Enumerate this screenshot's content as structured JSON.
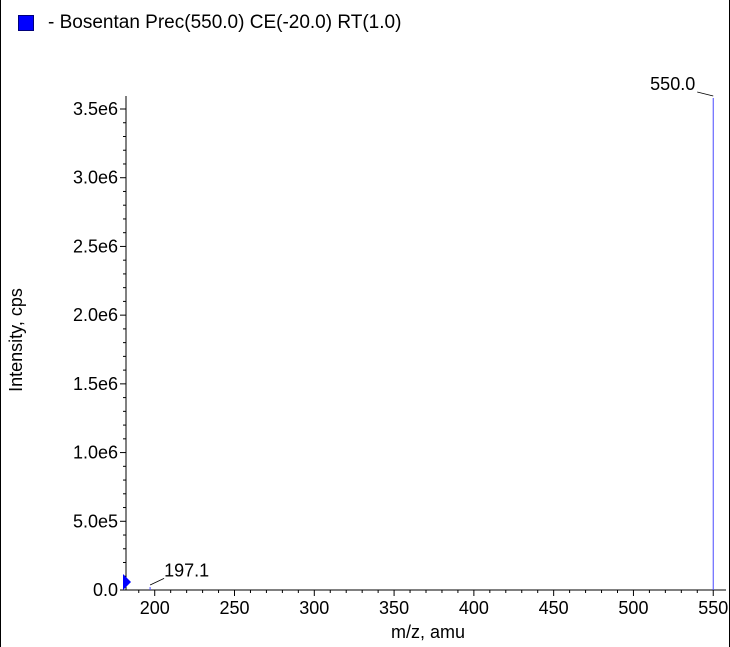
{
  "legend": {
    "swatch_color": "#0000ff",
    "text": "- Bosentan Prec(550.0) CE(-20.0) RT(1.0)"
  },
  "chart_data": {
    "type": "bar",
    "title": "",
    "xlabel": "m/z, amu",
    "ylabel": "Intensity, cps",
    "xlim": [
      182,
      558
    ],
    "ylim": [
      0,
      3600000
    ],
    "x_ticks": [
      200,
      250,
      300,
      350,
      400,
      450,
      500,
      550
    ],
    "x_tick_labels": [
      "200",
      "250",
      "300",
      "350",
      "400",
      "450",
      "500",
      "550"
    ],
    "y_ticks": [
      0,
      500000,
      1000000,
      1500000,
      2000000,
      2500000,
      3000000,
      3500000
    ],
    "y_tick_labels": [
      "0.0",
      "5.0e5",
      "1.0e6",
      "1.5e6",
      "2.0e6",
      "2.5e6",
      "3.0e6",
      "3.5e6"
    ],
    "series": [
      {
        "color": "#4a4aff",
        "peaks": [
          {
            "mz": 197.1,
            "intensity": 12000,
            "label": "197.1"
          },
          {
            "mz": 550.0,
            "intensity": 3580000,
            "label": "550.0"
          }
        ]
      }
    ],
    "grid": false
  }
}
